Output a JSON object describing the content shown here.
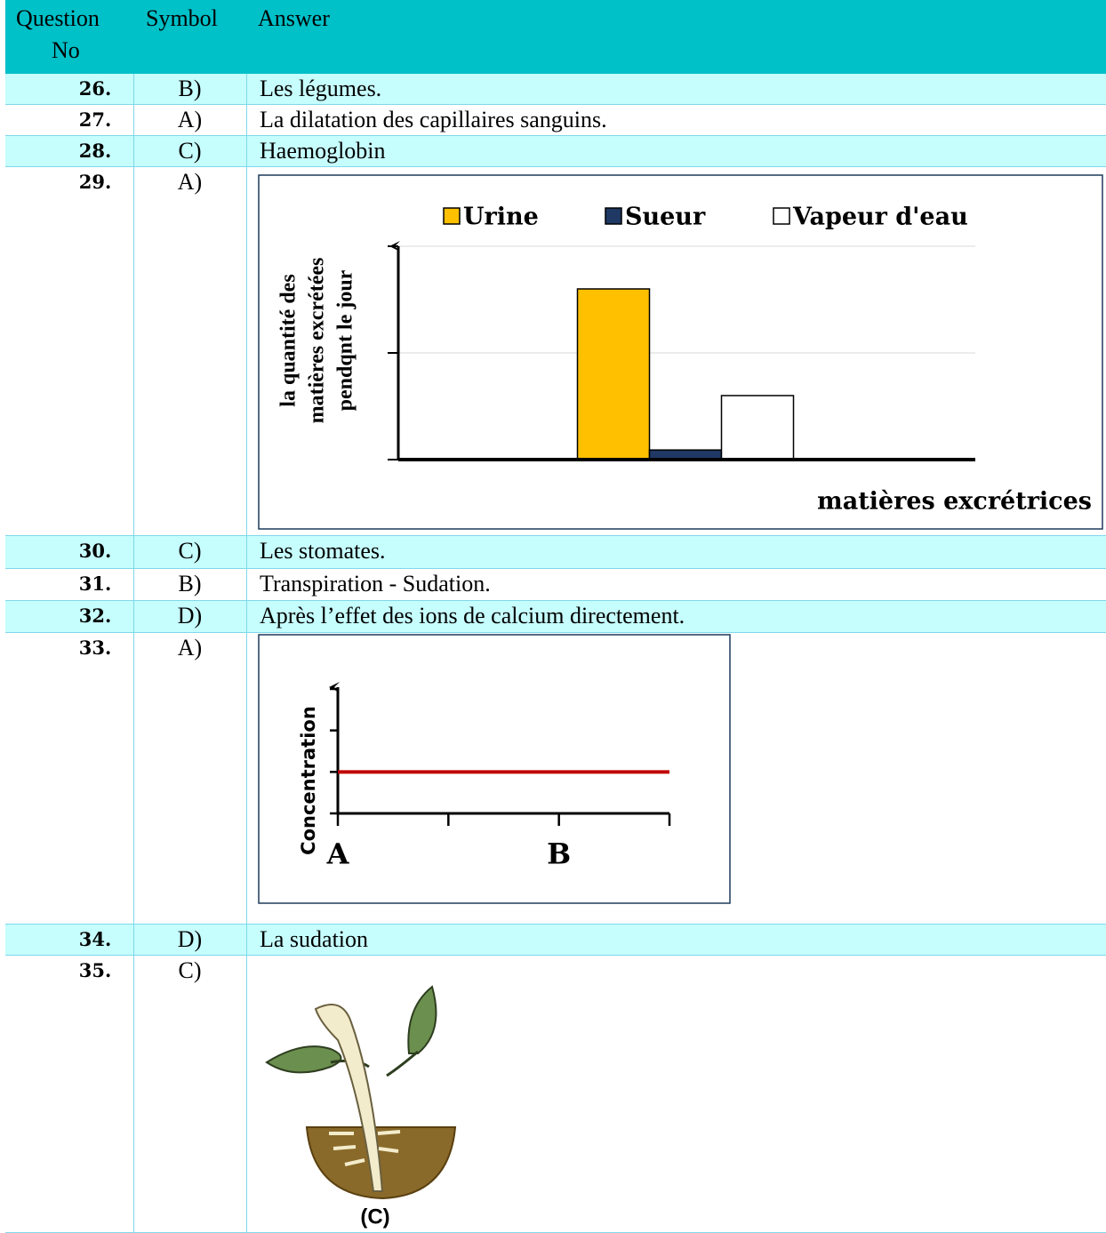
{
  "table": {
    "header": {
      "question": [
        "Question",
        "No"
      ],
      "symbol": "Symbol",
      "answer": "Answer"
    },
    "rows": [
      {
        "no": "26.",
        "symbol": "B)",
        "answer": "Les légumes."
      },
      {
        "no": "27.",
        "symbol": "A)",
        "answer": "La dilatation des capillaires sanguins."
      },
      {
        "no": "28.",
        "symbol": "C)",
        "answer": "Haemoglobin"
      },
      {
        "no": "29.",
        "symbol": "A)"
      },
      {
        "no": "30.",
        "symbol": "C)",
        "answer": "Les stomates."
      },
      {
        "no": "31.",
        "symbol": "B)",
        "answer": "Transpiration - Sudation."
      },
      {
        "no": "32.",
        "symbol": "D)",
        "answer": "Après l’effet des ions de calcium directement."
      },
      {
        "no": "33.",
        "symbol": "A)"
      },
      {
        "no": "34.",
        "symbol": "D)",
        "answer": "La sudation"
      },
      {
        "no": "35.",
        "symbol": "C)",
        "figure_label": "(C)"
      }
    ]
  },
  "chart_data": [
    {
      "type": "bar",
      "series": [
        {
          "name": "Urine",
          "color": "#ffc000",
          "values": [
            1.6
          ]
        },
        {
          "name": "Sueur",
          "color": "#1f3864",
          "values": [
            0.09
          ]
        },
        {
          "name": "Vapeur d'eau",
          "color": "#ffffff",
          "values": [
            0.6
          ]
        }
      ],
      "x_label": "matières excrétrices",
      "y_label": [
        "la quantité des",
        "matières excrétées",
        "pendqnt le jour"
      ],
      "ylim": [
        0,
        2
      ],
      "yticks": [
        0,
        1,
        2
      ],
      "grid": true
    },
    {
      "type": "line",
      "x": [
        0,
        3
      ],
      "series": [
        {
          "color": "#c00000",
          "values": [
            1,
            1
          ]
        }
      ],
      "y_label": "Concentration",
      "xlim": [
        0,
        3
      ],
      "xticks": [
        0,
        1,
        2,
        3
      ],
      "ylim": [
        0,
        3
      ],
      "yticks": [
        0,
        1,
        2,
        3
      ],
      "grid": false,
      "point_labels": [
        {
          "x": 0,
          "label": "A"
        },
        {
          "x": 2,
          "label": "B"
        }
      ]
    }
  ]
}
